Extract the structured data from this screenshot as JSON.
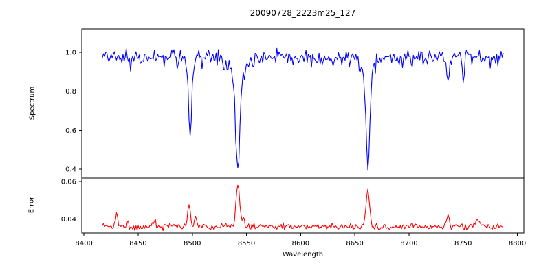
{
  "window": {
    "background": "#ffffff"
  },
  "chart_data": {
    "type": "line",
    "title": "20090728_2223m25_127",
    "xlabel": "Wavelength",
    "grid": false,
    "legend": null,
    "x_range": [
      8417,
      8787
    ],
    "x_step": 1,
    "xlim": [
      8398,
      8806
    ],
    "x_ticks": [
      8400,
      8450,
      8500,
      8550,
      8600,
      8650,
      8700,
      8750,
      8800
    ],
    "x_tick_labels": [
      "8400",
      "8450",
      "8500",
      "8550",
      "8600",
      "8650",
      "8700",
      "8750",
      "8800"
    ],
    "panels": [
      {
        "ylabel": "Spectrum",
        "ylim": [
          0.354,
          1.12
        ],
        "y_ticks": [
          0.4,
          0.6,
          0.8,
          1.0
        ],
        "y_tick_labels": [
          "0.4",
          "0.6",
          "0.8",
          "1.0"
        ],
        "height_ratio": 2.7,
        "series": [
          {
            "name": "spectrum",
            "color": "#0000ff",
            "continuum": 0.975,
            "noise_amp": 0.019,
            "spike_prob": 0.05,
            "spike_amp": 0.055,
            "spike_sign": -1,
            "seed": 20090728,
            "features": [
              {
                "center": 8498,
                "amplitude": -0.36,
                "sigma": 1.3
              },
              {
                "center": 8498,
                "amplitude": -0.05,
                "sigma": 4
              },
              {
                "center": 8542,
                "amplitude": -0.48,
                "sigma": 1.9
              },
              {
                "center": 8542,
                "amplitude": -0.1,
                "sigma": 7.5
              },
              {
                "center": 8662,
                "amplitude": -0.48,
                "sigma": 1.7
              },
              {
                "center": 8662,
                "amplitude": -0.08,
                "sigma": 6
              },
              {
                "center": 8736,
                "amplitude": -0.12,
                "sigma": 1.3
              },
              {
                "center": 8750,
                "amplitude": -0.1,
                "sigma": 1.1
              }
            ],
            "line_minima": [
              {
                "wavelength": 8498,
                "value": 0.57
              },
              {
                "wavelength": 8542,
                "value": 0.39
              },
              {
                "wavelength": 8662,
                "value": 0.42
              }
            ]
          }
        ]
      },
      {
        "ylabel": "Error",
        "ylim": [
          0.0325,
          0.0618
        ],
        "y_ticks": [
          0.04,
          0.06
        ],
        "y_tick_labels": [
          "0.04",
          "0.06"
        ],
        "height_ratio": 1,
        "series": [
          {
            "name": "error",
            "color": "#ff0000",
            "continuum": 0.0358,
            "noise_amp": 0.0008,
            "spike_prob": 0.05,
            "spike_amp": 0.0025,
            "spike_sign": 1,
            "seed": 2223,
            "features": [
              {
                "center": 8430,
                "amplitude": 0.0075,
                "sigma": 1.1
              },
              {
                "center": 8464,
                "amplitude": 0.0032,
                "sigma": 1.4
              },
              {
                "center": 8497,
                "amplitude": 0.0125,
                "sigma": 1.3
              },
              {
                "center": 8503,
                "amplitude": 0.005,
                "sigma": 1.1
              },
              {
                "center": 8542,
                "amplitude": 0.0235,
                "sigma": 1.6
              },
              {
                "center": 8547,
                "amplitude": 0.0045,
                "sigma": 1.2
              },
              {
                "center": 8662,
                "amplitude": 0.0195,
                "sigma": 1.7
              },
              {
                "center": 8736,
                "amplitude": 0.006,
                "sigma": 1.2
              },
              {
                "center": 8763,
                "amplitude": 0.0035,
                "sigma": 1.8
              }
            ],
            "peak_maxima": [
              {
                "wavelength": 8430,
                "value": 0.044
              },
              {
                "wavelength": 8497,
                "value": 0.049
              },
              {
                "wavelength": 8542,
                "value": 0.06
              },
              {
                "wavelength": 8662,
                "value": 0.056
              }
            ]
          }
        ]
      }
    ]
  }
}
